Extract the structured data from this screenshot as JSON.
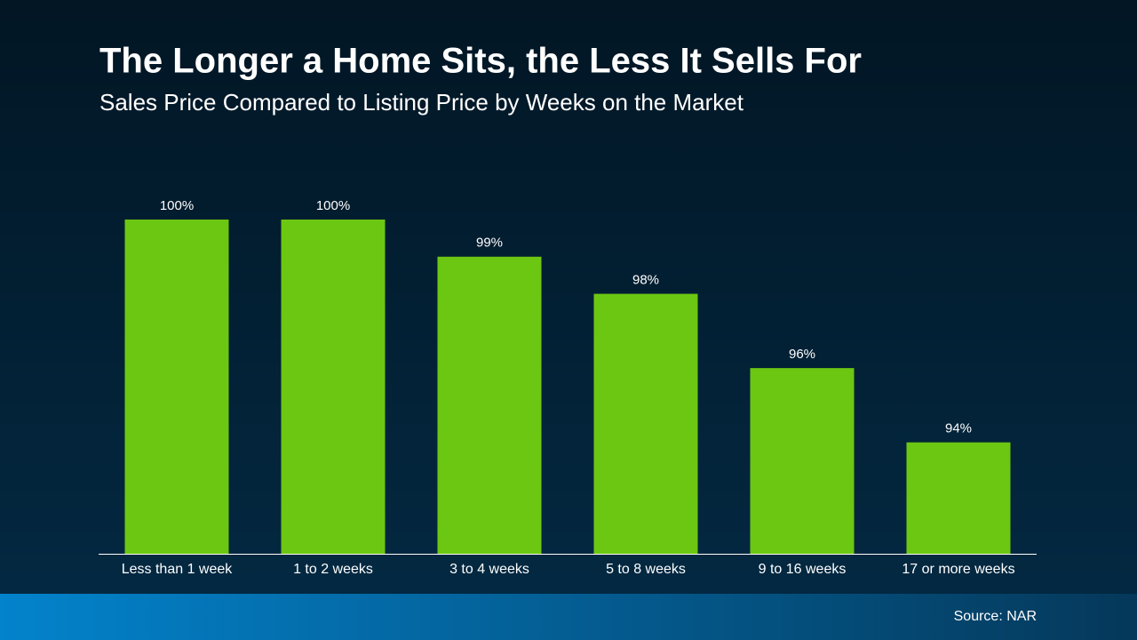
{
  "chart_data": {
    "type": "bar",
    "title": "The Longer a Home Sits, the Less It Sells For",
    "subtitle": "Sales Price Compared to Listing Price by Weeks on the Market",
    "categories": [
      "Less than 1 week",
      "1 to 2 weeks",
      "3 to 4 weeks",
      "5 to 8 weeks",
      "9 to 16 weeks",
      "17 or more weeks"
    ],
    "values": [
      100,
      100,
      99,
      98,
      96,
      94
    ],
    "value_labels": [
      "100%",
      "100%",
      "99%",
      "98%",
      "96%",
      "94%"
    ],
    "color": "#6cc712",
    "ylim": [
      91,
      100
    ],
    "source": "Source: NAR"
  }
}
